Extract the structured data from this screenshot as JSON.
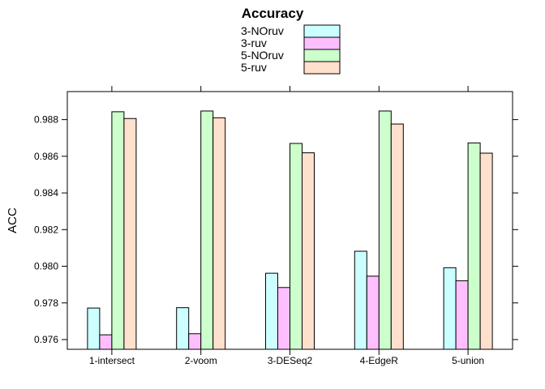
{
  "chart_data": {
    "type": "bar",
    "title": "Accuracy",
    "ylabel": "ACC",
    "xlabel": "",
    "categories": [
      "1-intersect",
      "2-voom",
      "3-DESeq2",
      "4-EdgeR",
      "5-union"
    ],
    "series": [
      {
        "name": "3-NOruv",
        "color": "#CCFFFF",
        "values": [
          0.97772,
          0.97774,
          0.97962,
          0.98082,
          0.97992
        ]
      },
      {
        "name": "3-ruv",
        "color": "#FFBFFF",
        "values": [
          0.97626,
          0.97632,
          0.97884,
          0.97946,
          0.97921
        ]
      },
      {
        "name": "5-NOruv",
        "color": "#CCFFCC",
        "values": [
          0.98843,
          0.98847,
          0.9867,
          0.98847,
          0.98673
        ]
      },
      {
        "name": "5-ruv",
        "color": "#FFE0CC",
        "values": [
          0.98806,
          0.9881,
          0.98619,
          0.98776,
          0.98617
        ]
      }
    ],
    "ylim": [
      0.97547,
      0.98953
    ],
    "yticks": [
      0.976,
      0.978,
      0.98,
      0.982,
      0.984,
      0.986,
      0.988
    ],
    "ytick_labels": [
      "0.976",
      "0.978",
      "0.980",
      "0.982",
      "0.984",
      "0.986",
      "0.988"
    ],
    "legend_position": "top",
    "grid": false
  }
}
